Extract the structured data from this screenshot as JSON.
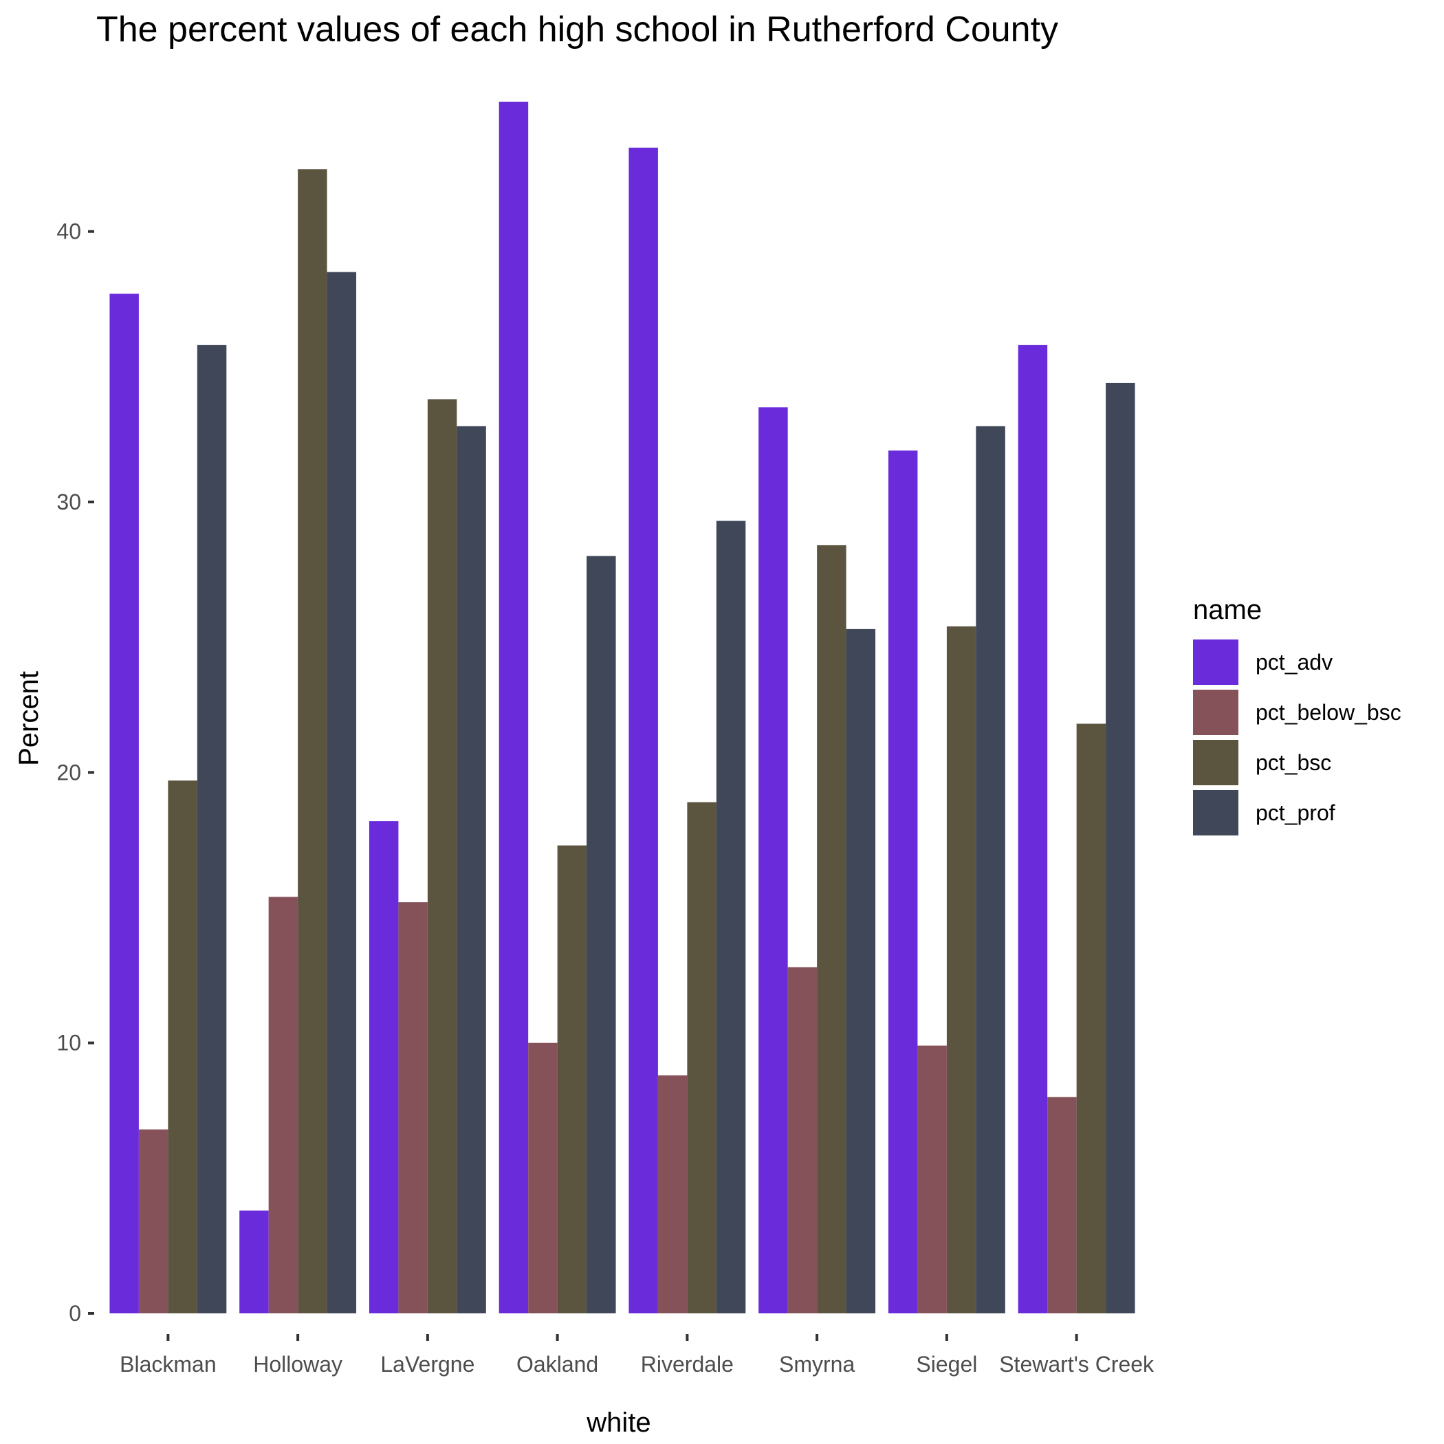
{
  "chart_data": {
    "type": "bar",
    "title": "The percent values of each high school in Rutherford County",
    "xlabel": "white",
    "ylabel": "Percent",
    "ylim": [
      0,
      45
    ],
    "yticks": [
      0,
      10,
      20,
      30,
      40
    ],
    "grid": false,
    "legend": {
      "title": "name",
      "placement": "right"
    },
    "categories": [
      "Blackman",
      "Holloway",
      "LaVergne",
      "Oakland",
      "Riverdale",
      "Smyrna",
      "Siegel",
      "Stewart's Creek"
    ],
    "series": [
      {
        "name": "pct_adv",
        "color": "#6a2bdb",
        "values": [
          37.7,
          3.8,
          18.2,
          44.8,
          43.1,
          33.5,
          31.9,
          35.8
        ]
      },
      {
        "name": "pct_below_bsc",
        "color": "#86525a",
        "values": [
          6.8,
          15.4,
          15.2,
          10.0,
          8.8,
          12.8,
          9.9,
          8.0
        ]
      },
      {
        "name": "pct_bsc",
        "color": "#5b5540",
        "values": [
          19.7,
          42.3,
          33.8,
          17.3,
          18.9,
          28.4,
          25.4,
          21.8
        ]
      },
      {
        "name": "pct_prof",
        "color": "#3f4759",
        "values": [
          35.8,
          38.5,
          32.8,
          28.0,
          29.3,
          25.3,
          32.8,
          34.4
        ]
      }
    ]
  }
}
